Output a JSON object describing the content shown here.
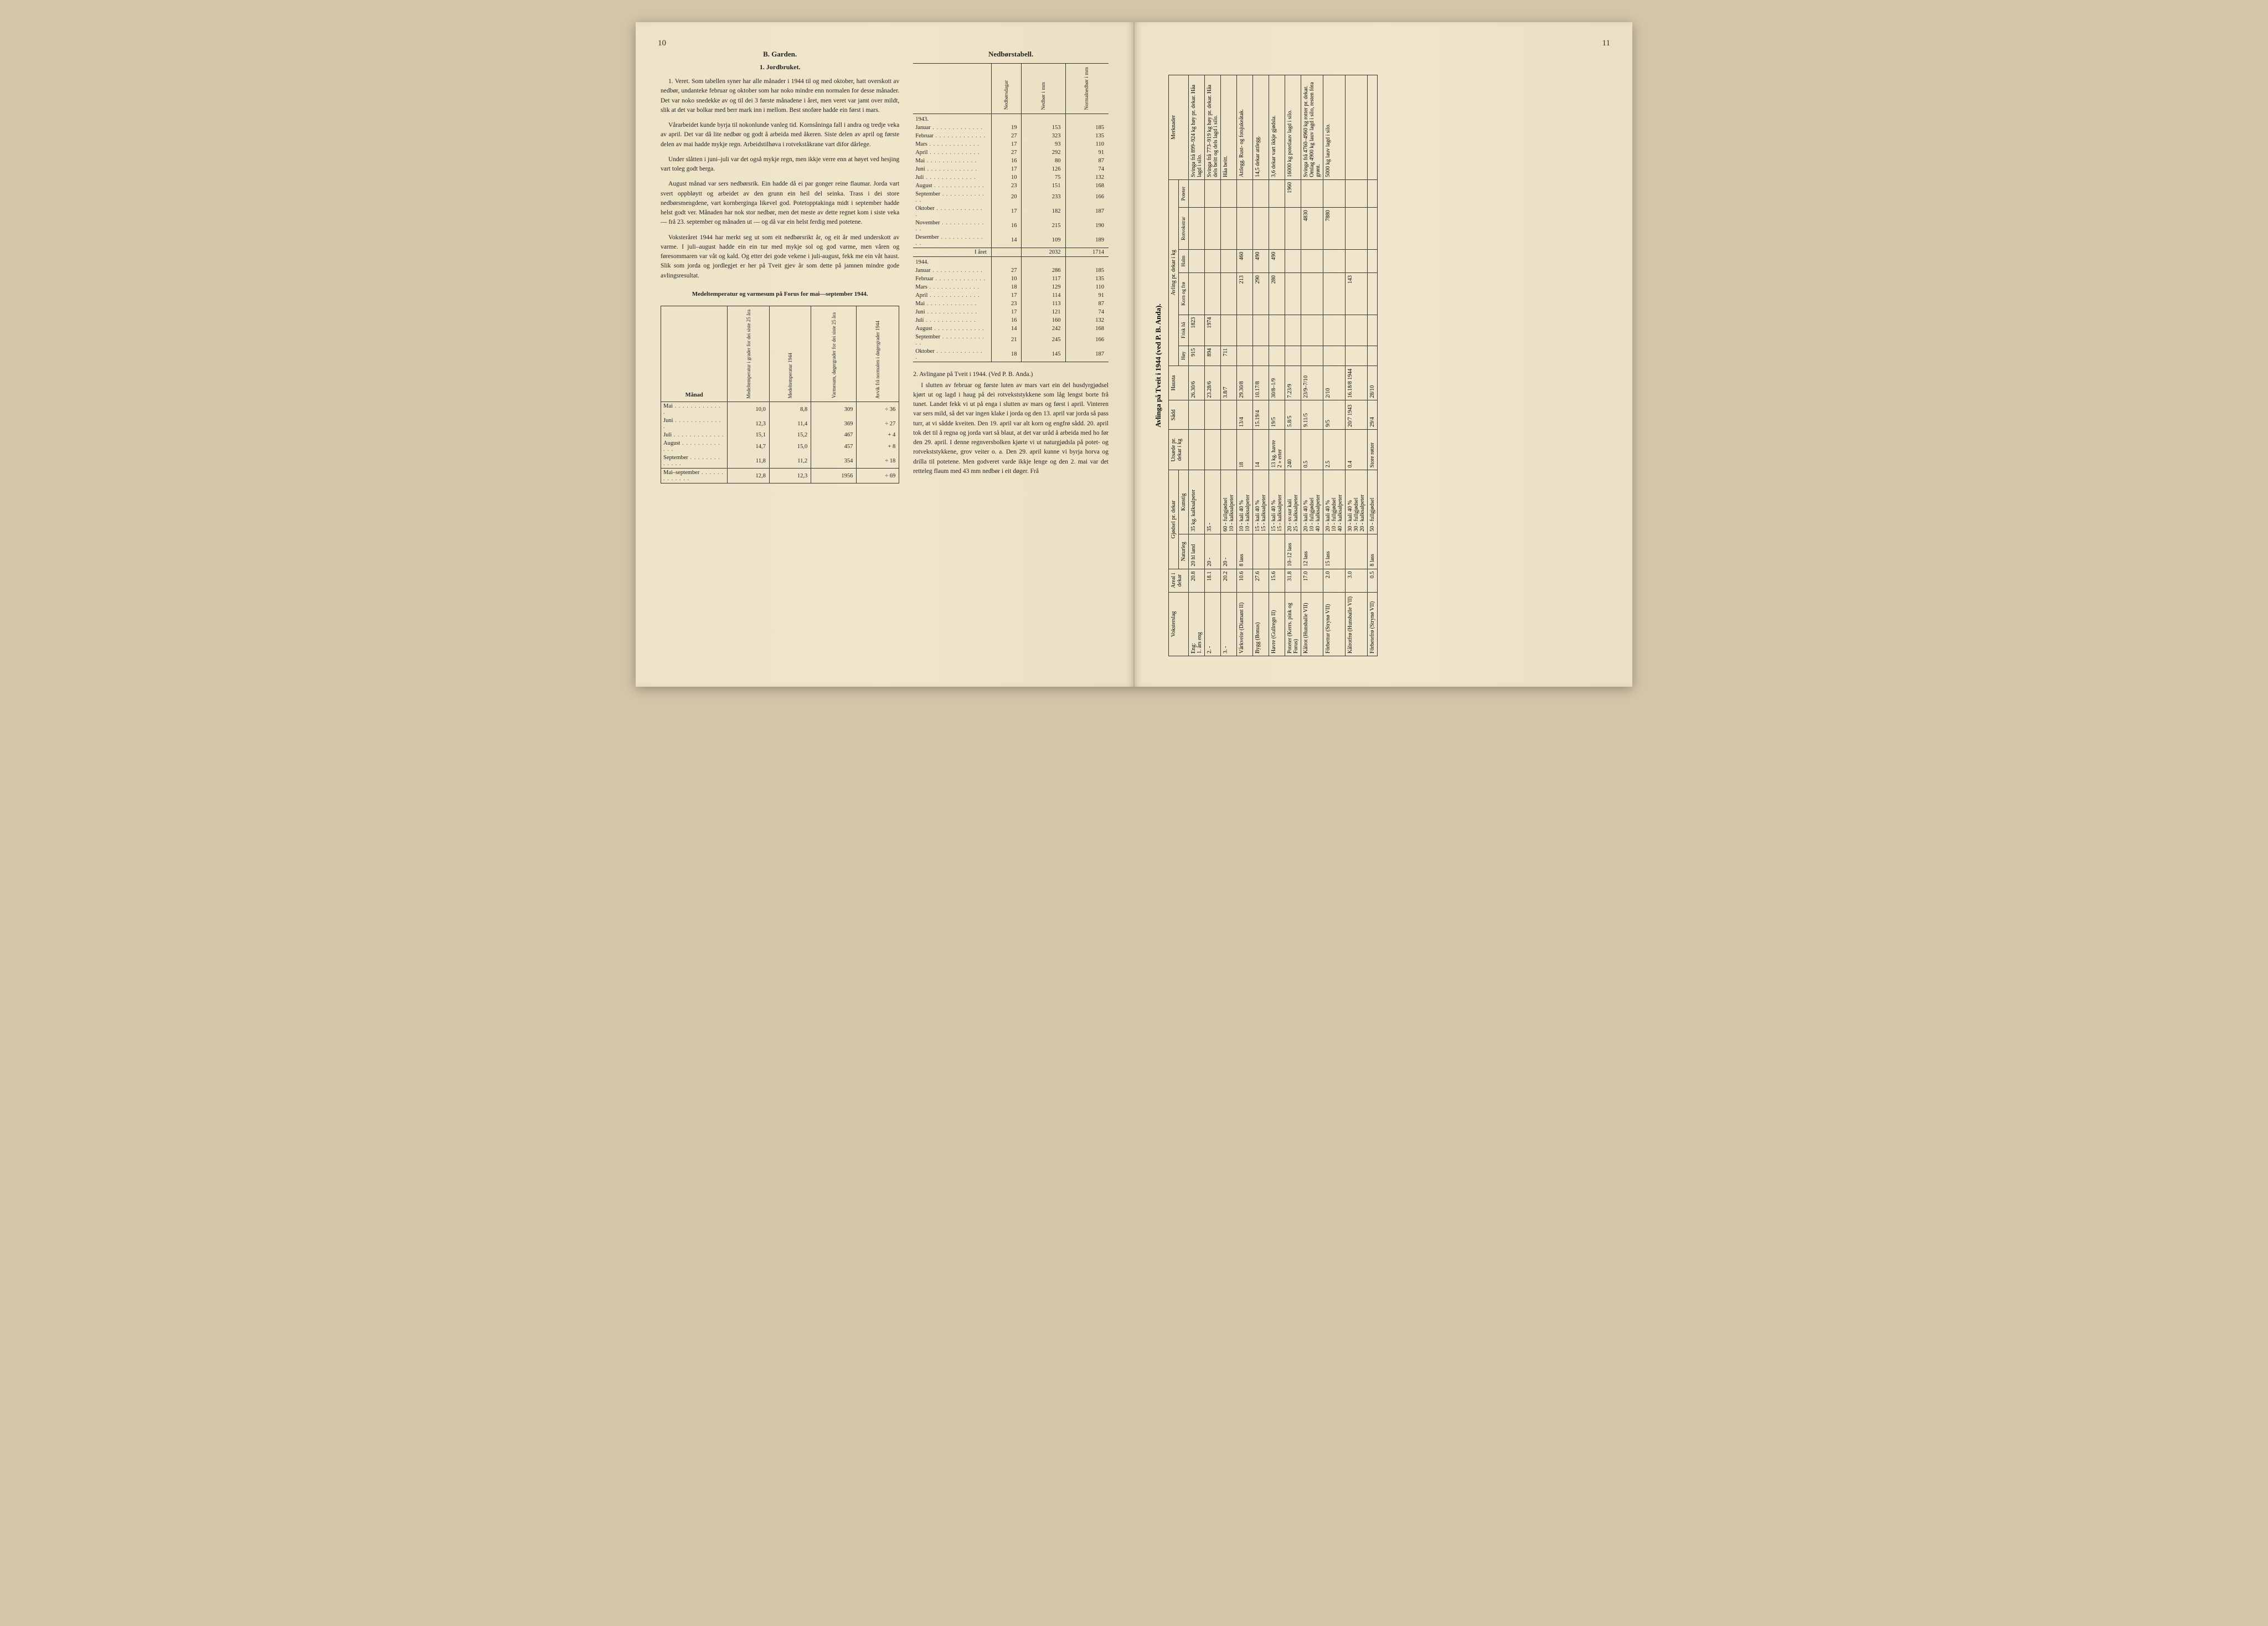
{
  "page_left_num": "10",
  "page_right_num": "11",
  "left": {
    "section_b": "B. Garden.",
    "sub1": "1. Jordbruket.",
    "para1": "1. Veret. Som tabellen syner har alle månader i 1944 til og med oktober, hatt overskott av nedbør, undanteke februar og oktober som har noko mindre enn normalen for desse månader. Det var noko snedekke av og til dei 3 første månadene i året, men veret var jamt over mildt, slik at det var bolkar med berr mark inn i mellom. Best snoføre hadde ein først i mars.",
    "para2": "Vårarbeidet kunde byrja til nokonlunde vanleg tid. Kornsåninga fall i andra og tredje veka av april. Det var då lite nedbør og godt å arbeida med åkeren. Siste delen av april og første delen av mai hadde mykje regn. Arbeidstilhøva i rotvekståkrane vart difor dårlege.",
    "para3": "Under slåtten i juni–juli var det også mykje regn, men ikkje verre enn at høyet ved hesjing vart toleg godt berga.",
    "para4": "August månad var sers nedbørsrik. Ein hadde då ei par gonger reine flaumar. Jorda vart svert oppbløytt og arbeidet av den grunn ein heil del seinka. Trass i dei store nedbørsmengdene, vart kornberginga likevel god. Potetopptakinga midt i september hadde helst godt ver. Månaden har nok stor nedbør, men det meste av dette regnet kom i siste veka — frå 23. september og månaden ut — og då var ein helst ferdig med potetene.",
    "para5": "Voksteråret 1944 har merkt seg ut som eit nedbørsrikt år, og eit år med underskott av varme. I juli–august hadde ein ein tur med mykje sol og god varme, men våren og føresommaren var våt og kald. Og etter dei gode vekene i juli-august, fekk me ein våt haust. Slik som jorda og jordlegjet er her på Tveit gjev år som dette på jamnen mindre gode avlingsresultat.",
    "temp_table_title": "Medeltemperatur og varmesum på Forus for mai—september 1944.",
    "temp_headers": [
      "Månad",
      "Medeltemperatur i grader for dei siste 25 åra",
      "Medeltemperatur 1944",
      "Varmesum, døgergrader for dei siste 25 åra",
      "Avvik frå normalen i døgergrader 1944"
    ],
    "temp_rows": [
      [
        "Mai",
        "10,0",
        "8,8",
        "309",
        "÷ 36"
      ],
      [
        "Juni",
        "12,3",
        "11,4",
        "369",
        "÷ 27"
      ],
      [
        "Juli",
        "15,1",
        "15,2",
        "467",
        "+ 4"
      ],
      [
        "August",
        "14,7",
        "15,0",
        "457",
        "+ 8"
      ],
      [
        "September",
        "11,8",
        "11,2",
        "354",
        "÷ 18"
      ]
    ],
    "temp_total": [
      "Mai–september",
      "12,8",
      "12,3",
      "1956",
      "÷ 69"
    ],
    "nedbor_title": "Nedbørstabell.",
    "nedbor_headers": [
      "",
      "Nedbørsdagar",
      "Nedbør i mm",
      "Normalnedbør i mm"
    ],
    "nedbor_1943_label": "1943.",
    "nedbor_1943": [
      [
        "Januar",
        "19",
        "153",
        "185"
      ],
      [
        "Februar",
        "27",
        "323",
        "135"
      ],
      [
        "Mars",
        "17",
        "93",
        "110"
      ],
      [
        "April",
        "27",
        "292",
        "91"
      ],
      [
        "Mai",
        "16",
        "80",
        "87"
      ],
      [
        "Juni",
        "17",
        "126",
        "74"
      ],
      [
        "Juli",
        "10",
        "75",
        "132"
      ],
      [
        "August",
        "23",
        "151",
        "168"
      ],
      [
        "September",
        "20",
        "233",
        "166"
      ],
      [
        "Oktober",
        "17",
        "182",
        "187"
      ],
      [
        "November",
        "16",
        "215",
        "190"
      ],
      [
        "Desember",
        "14",
        "109",
        "189"
      ]
    ],
    "nedbor_1943_total": [
      "I året",
      "",
      "2032",
      "1714"
    ],
    "nedbor_1944_label": "1944.",
    "nedbor_1944": [
      [
        "Januar",
        "27",
        "286",
        "185"
      ],
      [
        "Februar",
        "10",
        "117",
        "135"
      ],
      [
        "Mars",
        "18",
        "129",
        "110"
      ],
      [
        "April",
        "17",
        "114",
        "91"
      ],
      [
        "Mai",
        "23",
        "113",
        "87"
      ],
      [
        "Juni",
        "17",
        "121",
        "74"
      ],
      [
        "Juli",
        "16",
        "160",
        "132"
      ],
      [
        "August",
        "14",
        "242",
        "168"
      ],
      [
        "September",
        "21",
        "245",
        "166"
      ],
      [
        "Oktober",
        "18",
        "145",
        "187"
      ]
    ],
    "avling_intro_title": "2. Avlingane på Tveit i 1944. (Ved P. B. Anda.)",
    "avling_intro": "I slutten av februar og første luten av mars vart ein del husdyrgjødsel kjørt ut og lagd i haug på dei rotvekststykkene som låg lengst borte frå tunet. Landet fekk vi ut på enga i slutten av mars og først i april. Vinteren var sers mild, så det var ingen klake i jorda og den 13. april var jorda så pass turr, at vi sådde kveiten. Den 19. april var alt korn og engfrø sådd. 20. april tok det til å regna og jorda vart så blaut, at det var uråd å arbeida med ho før den 29. april. I denne regnversbolken kjørte vi ut naturgjødsla på potet- og rotvekststykkene, grov veiter o. a. Den 29. april kunne vi byrja horva og drilla til potetene. Men godveret varde ikkje lenge og den 2. mai var det retteleg flaum med 43 mm nedbør i eit døger. Frå"
  },
  "right": {
    "title": "Avlinga på Tveit i 1944 (ved P. B. Anda).",
    "headers_top": [
      "Voksterslag",
      "Areal i dekar",
      "Gjødsel pr. dekar",
      "Utsæde pr. dekar i kg",
      "Sådd",
      "Hausta",
      "Avling pr. dekar i kg",
      "Merknader"
    ],
    "headers_gjodsel": [
      "Naturleg",
      "Kunstig"
    ],
    "headers_avling": [
      "Høy",
      "Frisk hå",
      "Korn og frø",
      "Halm",
      "Rotvokstrar",
      "Poteter"
    ],
    "rows": [
      {
        "vokster": "Eng:",
        "sub": "1. års eng",
        "areal": "20.8",
        "nat": "20 hl land",
        "kunst": "35 kg. kalksalpeter",
        "utsade": "",
        "sadd": "",
        "hausta": "26.30/6",
        "hoy": "915",
        "ha": "1823",
        "korn": "",
        "halm": "",
        "rot": "",
        "pot": "",
        "merk": "Svinga frå 899–924 kg høy pr. dekar. Håa lagd i silo."
      },
      {
        "vokster": "",
        "sub": "2. -",
        "areal": "18.1",
        "nat": "20 -",
        "kunst": "35 -",
        "utsade": "",
        "sadd": "",
        "hausta": "23.28/6",
        "hoy": "894",
        "ha": "1974",
        "korn": "",
        "halm": "",
        "rot": "",
        "pot": "",
        "merk": "Svinga frå 773–919 kg høy pr. dekar. Håa dels beitt og dels lagd i silo."
      },
      {
        "vokster": "",
        "sub": "3. -",
        "areal": "20.2",
        "nat": "20 -",
        "kunst": "60 - fullgjødsel\n10 - kalksalpeter",
        "utsade": "",
        "sadd": "",
        "hausta": "3.8/7",
        "hoy": "711",
        "ha": "",
        "korn": "",
        "halm": "",
        "rot": "",
        "pot": "",
        "merk": "Håa beitt."
      },
      {
        "vokster": "Vårkveite (Diamant II)",
        "sub": "",
        "areal": "10.6",
        "nat": "8 lass",
        "kunst": "10 - kali 40 %\n10 - kalksalpeter",
        "utsade": "18",
        "sadd": "13/4",
        "hausta": "29.30/8",
        "hoy": "",
        "ha": "",
        "korn": "213",
        "halm": "460",
        "rot": "",
        "pot": "",
        "merk": "Attlegg. Rust- og fotsjukeåtak."
      },
      {
        "vokster": "Bygg (Bonus)",
        "sub": "",
        "areal": "27.6",
        "nat": "",
        "kunst": "15 - kali 40 %\n15 - kalksalpeter",
        "utsade": "14",
        "sadd": "15.19/4",
        "hausta": "10.17/8",
        "hoy": "",
        "ha": "",
        "korn": "290",
        "halm": "490",
        "rot": "",
        "pot": "",
        "merk": "14,5 dekar attlegg."
      },
      {
        "vokster": "Havre (Gullregn II)",
        "sub": "",
        "areal": "15.6",
        "nat": "",
        "kunst": "15 - kali 40 %\n15 - kalksalpeter",
        "utsade": "13 kg. havre\n2  » erter",
        "sadd": "19/5",
        "hausta": "30/8–1/9",
        "hoy": "",
        "ha": "",
        "korn": "280",
        "halm": "490",
        "rot": "",
        "pot": "",
        "merk": "3,6 dekar vart ikkje gjødsla."
      },
      {
        "vokster": "Poteter (Kerrs. pink og Forus)",
        "sub": "",
        "areal": "31.8",
        "nat": "10–12 lass",
        "kunst": "20 - sv.sur kali\n25 - kalksalpeter",
        "utsade": "240",
        "sadd": "5.8/5",
        "hausta": "7.23/9",
        "hoy": "",
        "ha": "",
        "korn": "",
        "halm": "",
        "rot": "",
        "pot": "1960",
        "merk": "16000 kg potetlauv lagd i silo."
      },
      {
        "vokster": "Kålrot (Hunsballe VII)",
        "sub": "",
        "areal": "17.0",
        "nat": "12 lass",
        "kunst": "20 - kali 40 %\n10 - fullgjødsel\n40 - kalksalpeter",
        "utsade": "0.5",
        "sadd": "9.11/5",
        "hausta": "23/9–7/10",
        "hoy": "",
        "ha": "",
        "korn": "",
        "halm": "",
        "rot": "4830",
        "pot": "",
        "merk": "Svinga frå 4760–4960 kg rotter pr. dekar. Omlag 4900 kg lauv lagd i silo, resten fóra grønt."
      },
      {
        "vokster": "Fôrbettur (Strynø VII)",
        "sub": "",
        "areal": "2.0",
        "nat": "15 lass",
        "kunst": "20 - kali 40 %\n10 - fullgjødsel\n40 - kalksalpeter",
        "utsade": "2.5",
        "sadd": "9/5",
        "hausta": "2/10",
        "hoy": "",
        "ha": "",
        "korn": "",
        "halm": "",
        "rot": "7880",
        "pot": "",
        "merk": "5000 kg lauv lagd i silo."
      },
      {
        "vokster": "Kålrotfrø (Hunsballe VII)",
        "sub": "",
        "areal": "3.0",
        "nat": "",
        "kunst": "30 - kali 40 %\n30 - fullgjødsel\n20 - kalksalpeter",
        "utsade": "0.4",
        "sadd": "20/7 1943",
        "hausta": "16.18/8 1944",
        "hoy": "",
        "ha": "",
        "korn": "143",
        "halm": "",
        "rot": "",
        "pot": "",
        "merk": ""
      },
      {
        "vokster": "Fôrbetefrø (Strynø VII)",
        "sub": "",
        "areal": "0.5",
        "nat": "8 lass",
        "kunst": "50 - fullgjødsel",
        "utsade": "Store røtter",
        "sadd": "29/4",
        "hausta": "28/10",
        "hoy": "",
        "ha": "",
        "korn": "",
        "halm": "",
        "rot": "",
        "pot": "",
        "merk": ""
      }
    ]
  },
  "colors": {
    "page_bg": "#ede3c8",
    "text": "#222222",
    "rule": "#333333"
  }
}
